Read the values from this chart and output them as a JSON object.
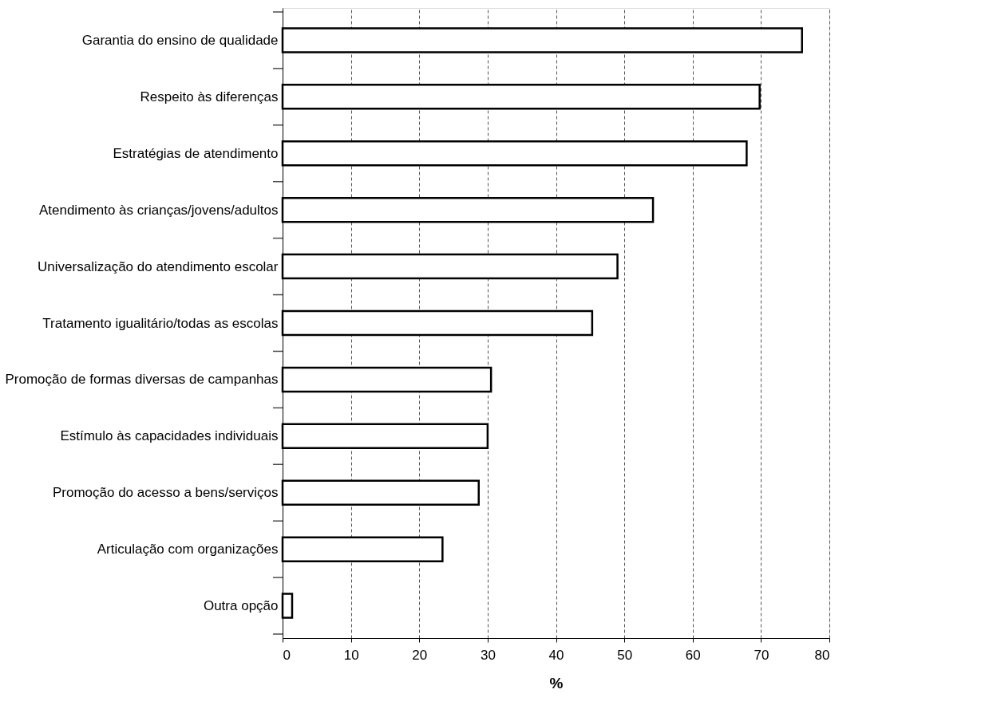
{
  "chart_data": {
    "type": "bar",
    "orientation": "horizontal",
    "xlabel": "%",
    "categories": [
      "Garantia do ensino de qualidade",
      "Respeito às diferenças",
      "Estratégias de atendimento",
      "Atendimento às crianças/jovens/adultos",
      "Universalização do atendimento escolar",
      "Tratamento igualitário/todas as escolas",
      "Promoção de formas diversas de campanhas",
      "Estímulo às capacidades individuais",
      "Promoção do acesso a bens/serviços",
      "Articulação com organizações",
      "Outra opção"
    ],
    "values": [
      76,
      69.8,
      67.9,
      54.2,
      49,
      45.3,
      30.5,
      30,
      28.7,
      23.4,
      1.4
    ],
    "color": "#ffffff",
    "xlim": [
      0,
      80
    ],
    "xticks": [
      0,
      10,
      20,
      30,
      40,
      50,
      60,
      70,
      80
    ],
    "grid": "x",
    "line_style": "dashed"
  }
}
